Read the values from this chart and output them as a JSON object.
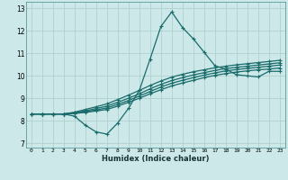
{
  "xlabel": "Humidex (Indice chaleur)",
  "xlim": [
    -0.5,
    23.5
  ],
  "ylim": [
    6.8,
    13.3
  ],
  "xticks": [
    0,
    1,
    2,
    3,
    4,
    5,
    6,
    7,
    8,
    9,
    10,
    11,
    12,
    13,
    14,
    15,
    16,
    17,
    18,
    19,
    20,
    21,
    22,
    23
  ],
  "yticks": [
    7,
    8,
    9,
    10,
    11,
    12,
    13
  ],
  "bg_color": "#cce8e8",
  "grid_color": "#b0d0d0",
  "line_color": "#1a6b6b",
  "lines": [
    [
      8.3,
      8.3,
      8.3,
      8.3,
      8.2,
      7.8,
      7.5,
      7.4,
      7.9,
      8.55,
      9.35,
      10.75,
      12.2,
      12.85,
      12.15,
      11.65,
      11.05,
      10.45,
      10.3,
      10.05,
      10.0,
      9.95,
      10.2,
      10.2
    ],
    [
      8.3,
      8.3,
      8.3,
      8.3,
      8.32,
      8.37,
      8.43,
      8.5,
      8.65,
      8.82,
      9.0,
      9.2,
      9.38,
      9.55,
      9.68,
      9.8,
      9.92,
      10.02,
      10.1,
      10.17,
      10.22,
      10.27,
      10.3,
      10.35
    ],
    [
      8.3,
      8.3,
      8.3,
      8.3,
      8.33,
      8.4,
      8.48,
      8.57,
      8.73,
      8.9,
      9.1,
      9.3,
      9.5,
      9.67,
      9.8,
      9.92,
      10.03,
      10.13,
      10.22,
      10.28,
      10.33,
      10.38,
      10.43,
      10.48
    ],
    [
      8.3,
      8.3,
      8.3,
      8.3,
      8.35,
      8.44,
      8.54,
      8.65,
      8.82,
      9.0,
      9.2,
      9.42,
      9.62,
      9.79,
      9.92,
      10.04,
      10.14,
      10.24,
      10.32,
      10.38,
      10.43,
      10.48,
      10.53,
      10.58
    ],
    [
      8.3,
      8.3,
      8.3,
      8.3,
      8.38,
      8.5,
      8.62,
      8.75,
      8.94,
      9.14,
      9.35,
      9.57,
      9.77,
      9.94,
      10.07,
      10.18,
      10.27,
      10.36,
      10.43,
      10.49,
      10.54,
      10.59,
      10.64,
      10.69
    ]
  ]
}
